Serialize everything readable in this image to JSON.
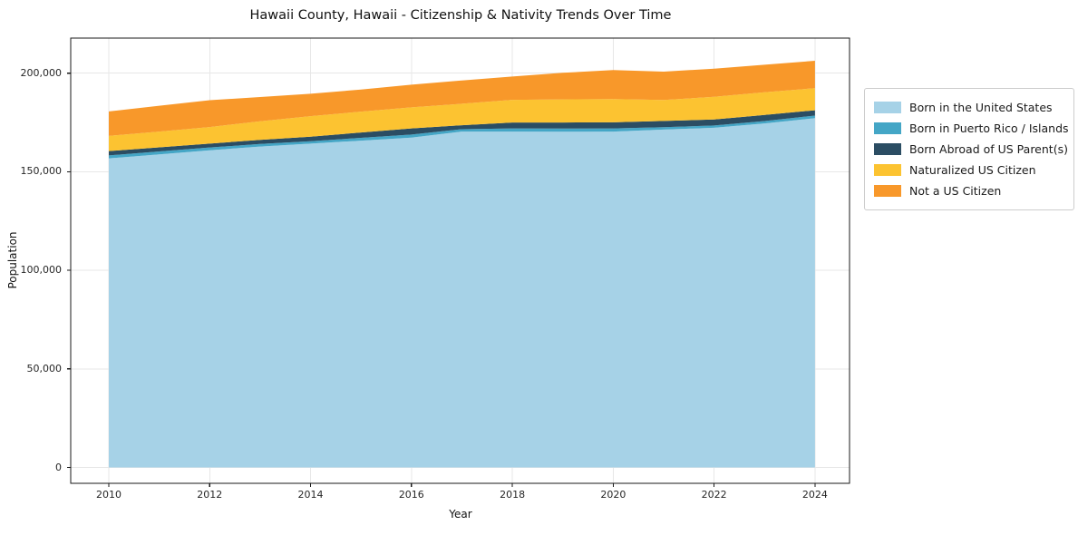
{
  "figure": {
    "background": "#ffffff"
  },
  "chart_data": {
    "type": "area",
    "stacked": true,
    "title": "Hawaii County, Hawaii - Citizenship & Nativity Trends Over Time",
    "xlabel": "Year",
    "ylabel": "Population",
    "x": [
      2010,
      2011,
      2012,
      2013,
      2014,
      2015,
      2016,
      2017,
      2018,
      2019,
      2020,
      2021,
      2022,
      2023,
      2024
    ],
    "series": [
      {
        "name": "Born in the United States",
        "color": "#a6d2e7",
        "values": [
          156800,
          158800,
          160900,
          162800,
          164300,
          165800,
          167300,
          170400,
          170400,
          170300,
          170400,
          171400,
          172300,
          174500,
          177200
        ]
      },
      {
        "name": "Born in Puerto Rico / Islands",
        "color": "#44a6c6",
        "values": [
          1500,
          1500,
          1400,
          1300,
          1200,
          1400,
          1600,
          1200,
          1600,
          1600,
          1600,
          1200,
          1200,
          1200,
          1300
        ]
      },
      {
        "name": "Born Abroad of US Parent(s)",
        "color": "#2b4d63",
        "values": [
          2200,
          2100,
          2000,
          2100,
          2300,
          2700,
          3100,
          2000,
          3000,
          3100,
          3100,
          3200,
          3000,
          3100,
          2700
        ]
      },
      {
        "name": "Naturalized US Citizen",
        "color": "#fcc331",
        "values": [
          7700,
          8000,
          8400,
          9400,
          10400,
          10600,
          10700,
          10900,
          11500,
          11700,
          11800,
          10600,
          11500,
          11500,
          11200
        ]
      },
      {
        "name": "Not a US Citizen",
        "color": "#f8982a",
        "values": [
          12400,
          13100,
          13600,
          12300,
          11400,
          11200,
          11500,
          11800,
          11800,
          13500,
          14700,
          14400,
          14300,
          14000,
          13900
        ]
      }
    ],
    "xlim": [
      2009.245,
      2024.685
    ],
    "ylim": [
      -8050,
      217810
    ],
    "xticks": [
      2010,
      2012,
      2014,
      2016,
      2018,
      2020,
      2022,
      2024
    ],
    "yticks": [
      0,
      50000,
      100000,
      150000,
      200000
    ],
    "ytick_labels": [
      "0",
      "50,000",
      "100,000",
      "150,000",
      "200,000"
    ],
    "grid": true,
    "legend_position": "right of axes",
    "grid_color": "#e7e7e7",
    "spine_color": "#1a1a1a"
  }
}
